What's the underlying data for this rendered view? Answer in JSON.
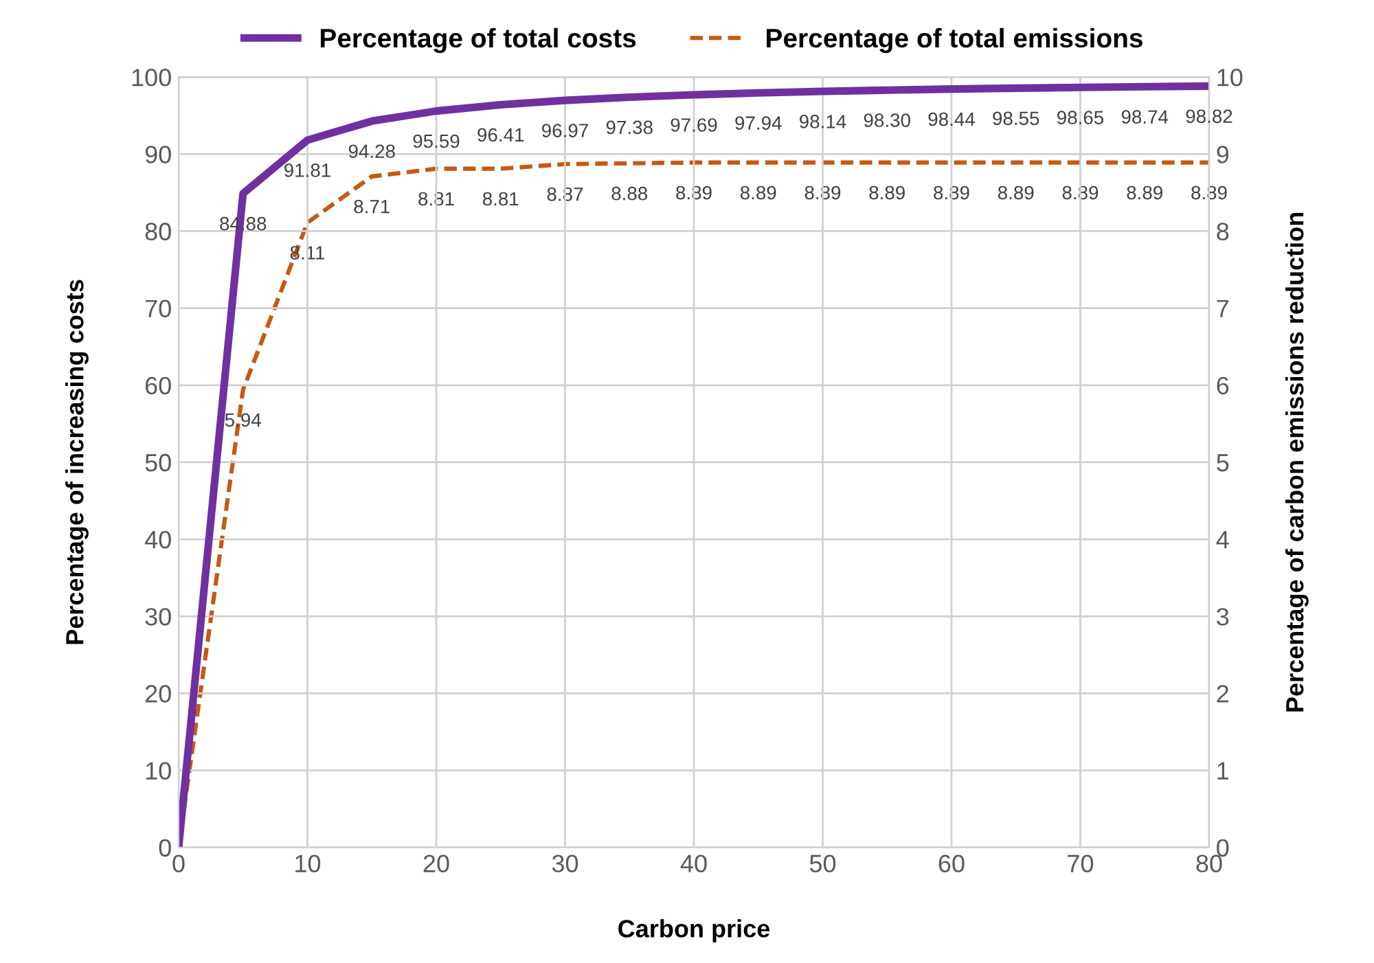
{
  "chart_data": {
    "type": "line",
    "xlabel": "Carbon price",
    "ylabel": "Percentage of increasing costs",
    "y2label": "Percentage of carbon emissions reduction",
    "x": [
      0,
      5,
      10,
      15,
      20,
      25,
      30,
      35,
      40,
      45,
      50,
      55,
      60,
      65,
      70,
      75,
      80
    ],
    "series": [
      {
        "name": "Percentage of total costs",
        "color": "#7030a0",
        "line_style": "solid",
        "values": [
          0,
          84.88,
          91.81,
          94.28,
          95.59,
          96.41,
          96.97,
          97.38,
          97.69,
          97.94,
          98.14,
          98.3,
          98.44,
          98.55,
          98.65,
          98.74,
          98.82
        ],
        "value_labels": [
          null,
          "84.88",
          "91.81",
          "94.28",
          "95.59",
          "96.41",
          "96.97",
          "97.38",
          "97.69",
          "97.94",
          "98.14",
          "98.30",
          "98.44",
          "98.55",
          "98.65",
          "98.74",
          "98.82"
        ]
      },
      {
        "name": "Percentage of total emissions",
        "color": "#c55a11",
        "line_style": "dashed",
        "axis": "y2",
        "values": [
          0,
          5.94,
          8.11,
          8.71,
          8.81,
          8.81,
          8.87,
          8.88,
          8.89,
          8.89,
          8.89,
          8.89,
          8.89,
          8.89,
          8.89,
          8.89,
          8.89
        ],
        "value_labels": [
          null,
          "5.94",
          "8.11",
          "8.71",
          "8.81",
          "8.81",
          "8.87",
          "8.88",
          "8.89",
          "8.89",
          "8.89",
          "8.89",
          "8.89",
          "8.89",
          "8.89",
          "8.89",
          "8.89"
        ]
      }
    ],
    "xlim": [
      0,
      80
    ],
    "xticks": [
      0,
      10,
      20,
      30,
      40,
      50,
      60,
      70,
      80
    ],
    "ylim": [
      0,
      100
    ],
    "yticks": [
      0,
      10,
      20,
      30,
      40,
      50,
      60,
      70,
      80,
      90,
      100
    ],
    "y2lim": [
      0,
      10
    ],
    "y2ticks": [
      0,
      1,
      2,
      3,
      4,
      5,
      6,
      7,
      8,
      9,
      10
    ],
    "grid": true,
    "legend": "top",
    "marker": "none"
  }
}
